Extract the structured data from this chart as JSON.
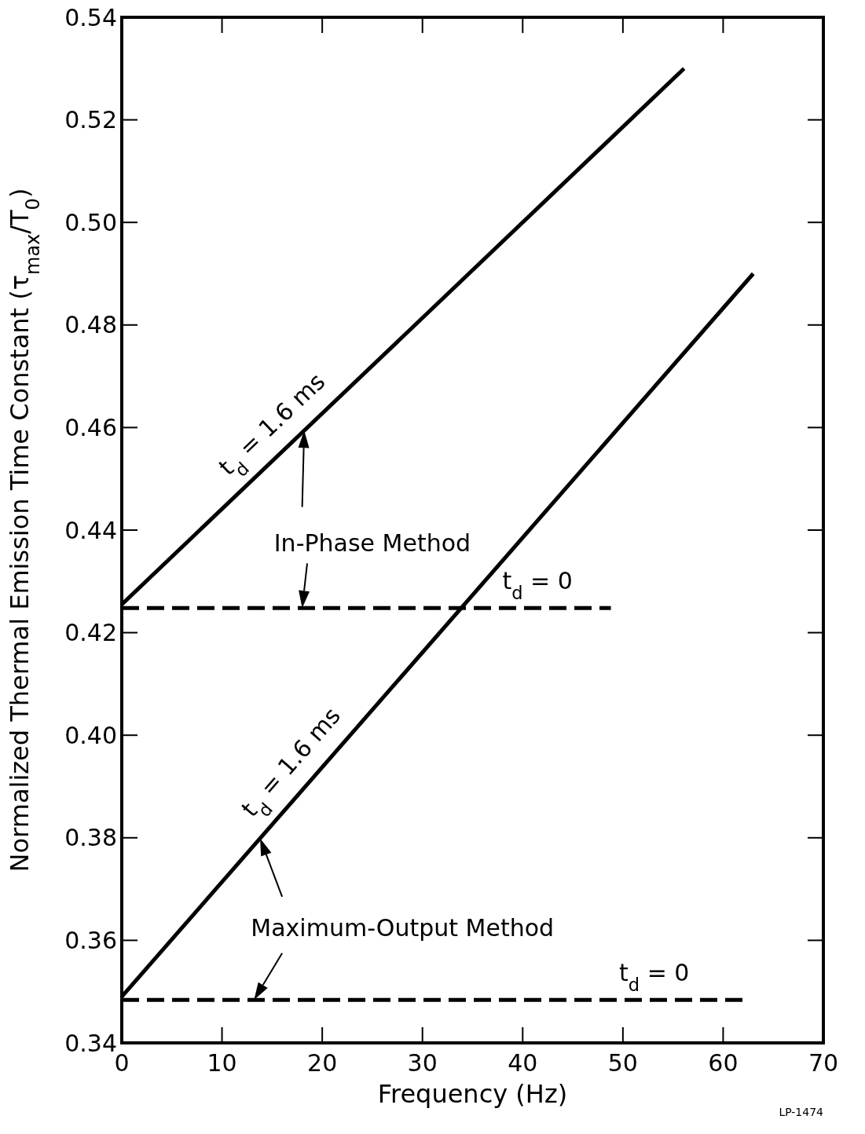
{
  "chart_data": {
    "type": "line",
    "xlabel": "Frequency  (Hz)",
    "ylabel": "Normalized Thermal Emission Time Constant   (τ$_{max}$/T$_{0}$)",
    "xlim": [
      0,
      70
    ],
    "xticks": [
      0,
      10,
      20,
      30,
      40,
      50,
      60,
      70
    ],
    "ylim": [
      0.34,
      0.54
    ],
    "yticks": [
      0.34,
      0.36,
      0.38,
      {
        "value": 0.4,
        "label": "0.40"
      },
      0.42,
      0.44,
      0.46,
      0.48,
      {
        "value": 0.5,
        "label": "0.50"
      },
      0.52,
      0.54
    ],
    "grid": false,
    "legend": false,
    "marker": "none",
    "series": [
      {
        "name": "t$_{d}$ = 1.6 ms",
        "color": "#000000",
        "x": [
          0,
          56.1
        ],
        "values": [
          0.4255,
          0.53
        ],
        "line_style": "solid"
      },
      {
        "name": "t$_{d}$ = 0",
        "color": "#000000",
        "x": [
          0,
          48.8
        ],
        "values": [
          0.4248,
          0.4248
        ],
        "line_style": "dashed"
      },
      {
        "name": "t$_{d}$ = 1.6 ms",
        "color": "#000000",
        "x": [
          0,
          63
        ],
        "values": [
          0.349,
          0.49
        ],
        "line_style": "solid"
      },
      {
        "name": "t$_{d}$ = 0",
        "color": "#000000",
        "x": [
          0,
          62.5
        ],
        "values": [
          0.3484,
          0.3484
        ],
        "line_style": "dashed"
      }
    ],
    "annotations": [
      "In-Phase Method",
      "Maximum-Output Method",
      "LP-1474"
    ]
  }
}
